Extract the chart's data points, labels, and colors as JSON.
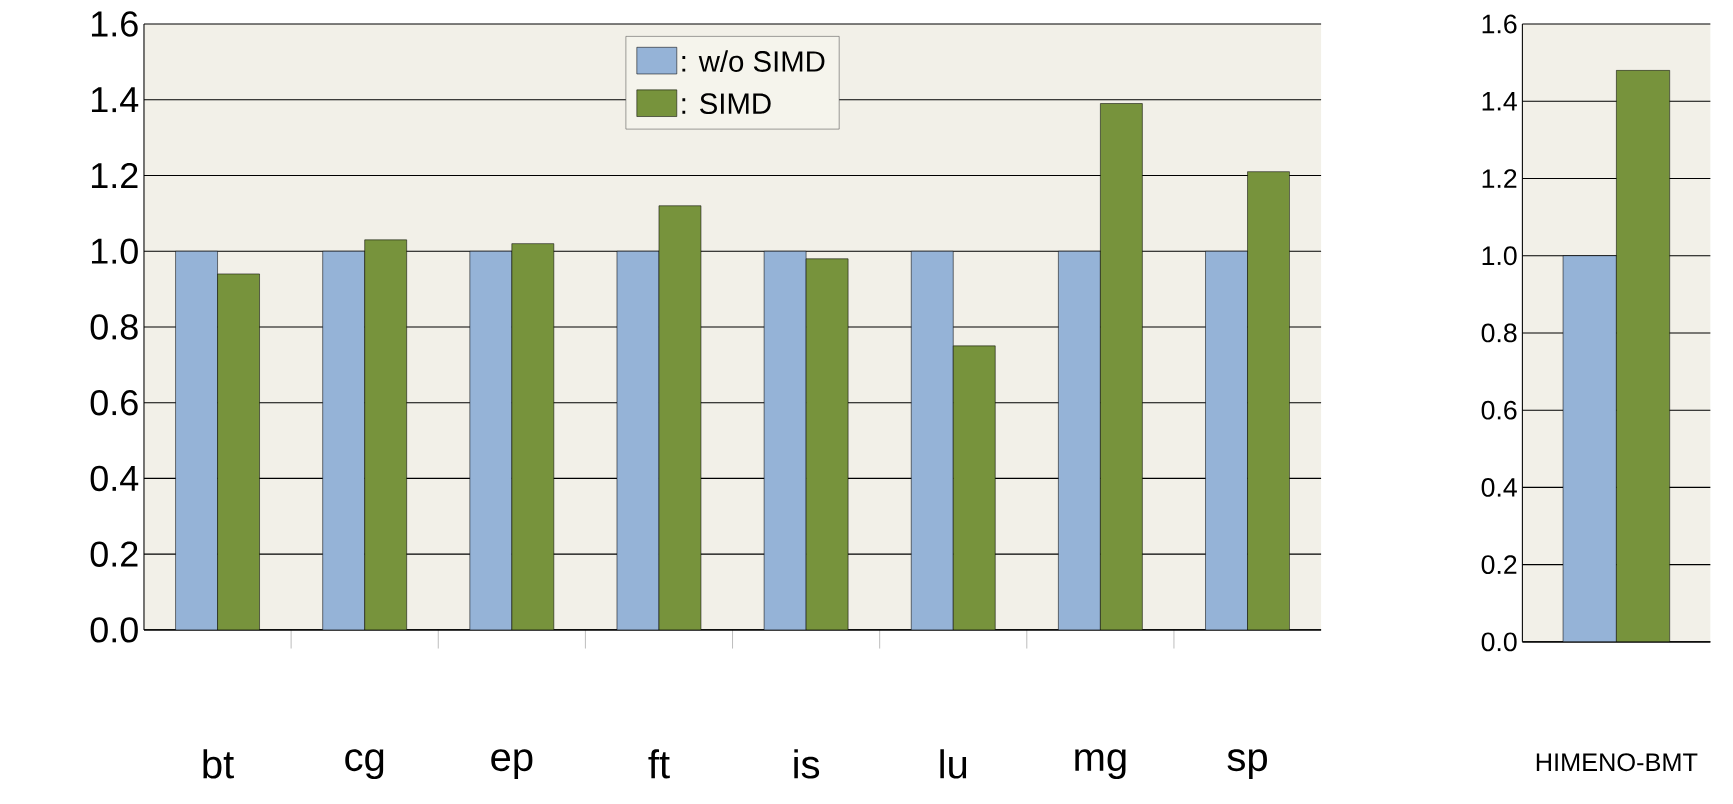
{
  "chart_data": [
    {
      "type": "bar",
      "categories": [
        "bt",
        "cg",
        "ep",
        "ft",
        "is",
        "lu",
        "mg",
        "sp"
      ],
      "ylim": [
        0,
        1.6
      ],
      "yticks": [
        {
          "value": 0,
          "label": "0.0"
        },
        {
          "value": 0.2,
          "label": "0.2"
        },
        {
          "value": 0.4,
          "label": "0.4"
        },
        {
          "value": 0.6,
          "label": "0.6"
        },
        {
          "value": 0.8,
          "label": "0.8"
        },
        {
          "value": 1,
          "label": "1.0"
        },
        {
          "value": 1.2,
          "label": "1.2"
        },
        {
          "value": 1.4,
          "label": "1.4"
        },
        {
          "value": 1.6,
          "label": "1.6"
        }
      ],
      "grid": "y",
      "legend": "top",
      "series": [
        {
          "name": ": w/o SIMD",
          "color": "#95b3d7",
          "values": [
            1,
            1,
            1,
            1,
            1,
            1,
            1,
            1
          ]
        },
        {
          "name": ": SIMD",
          "color": "#77933c",
          "values": [
            0.94,
            1.03,
            1.02,
            1.12,
            0.98,
            0.75,
            1.39,
            1.21
          ]
        }
      ]
    },
    {
      "type": "bar",
      "categories": [
        "HIMENO-BMT"
      ],
      "ylim": [
        0,
        1.6
      ],
      "yticks": [
        {
          "value": 0,
          "label": "0.0"
        },
        {
          "value": 0.2,
          "label": "0.2"
        },
        {
          "value": 0.4,
          "label": "0.4"
        },
        {
          "value": 0.6,
          "label": "0.6"
        },
        {
          "value": 0.8,
          "label": "0.8"
        },
        {
          "value": 1,
          "label": "1.0"
        },
        {
          "value": 1.2,
          "label": "1.2"
        },
        {
          "value": 1.4,
          "label": "1.4"
        },
        {
          "value": 1.6,
          "label": "1.6"
        }
      ],
      "grid": "y",
      "series": [
        {
          "color": "#95b3d7",
          "values": [
            1
          ]
        },
        {
          "color": "#77933c",
          "values": [
            1.48
          ]
        }
      ]
    }
  ]
}
